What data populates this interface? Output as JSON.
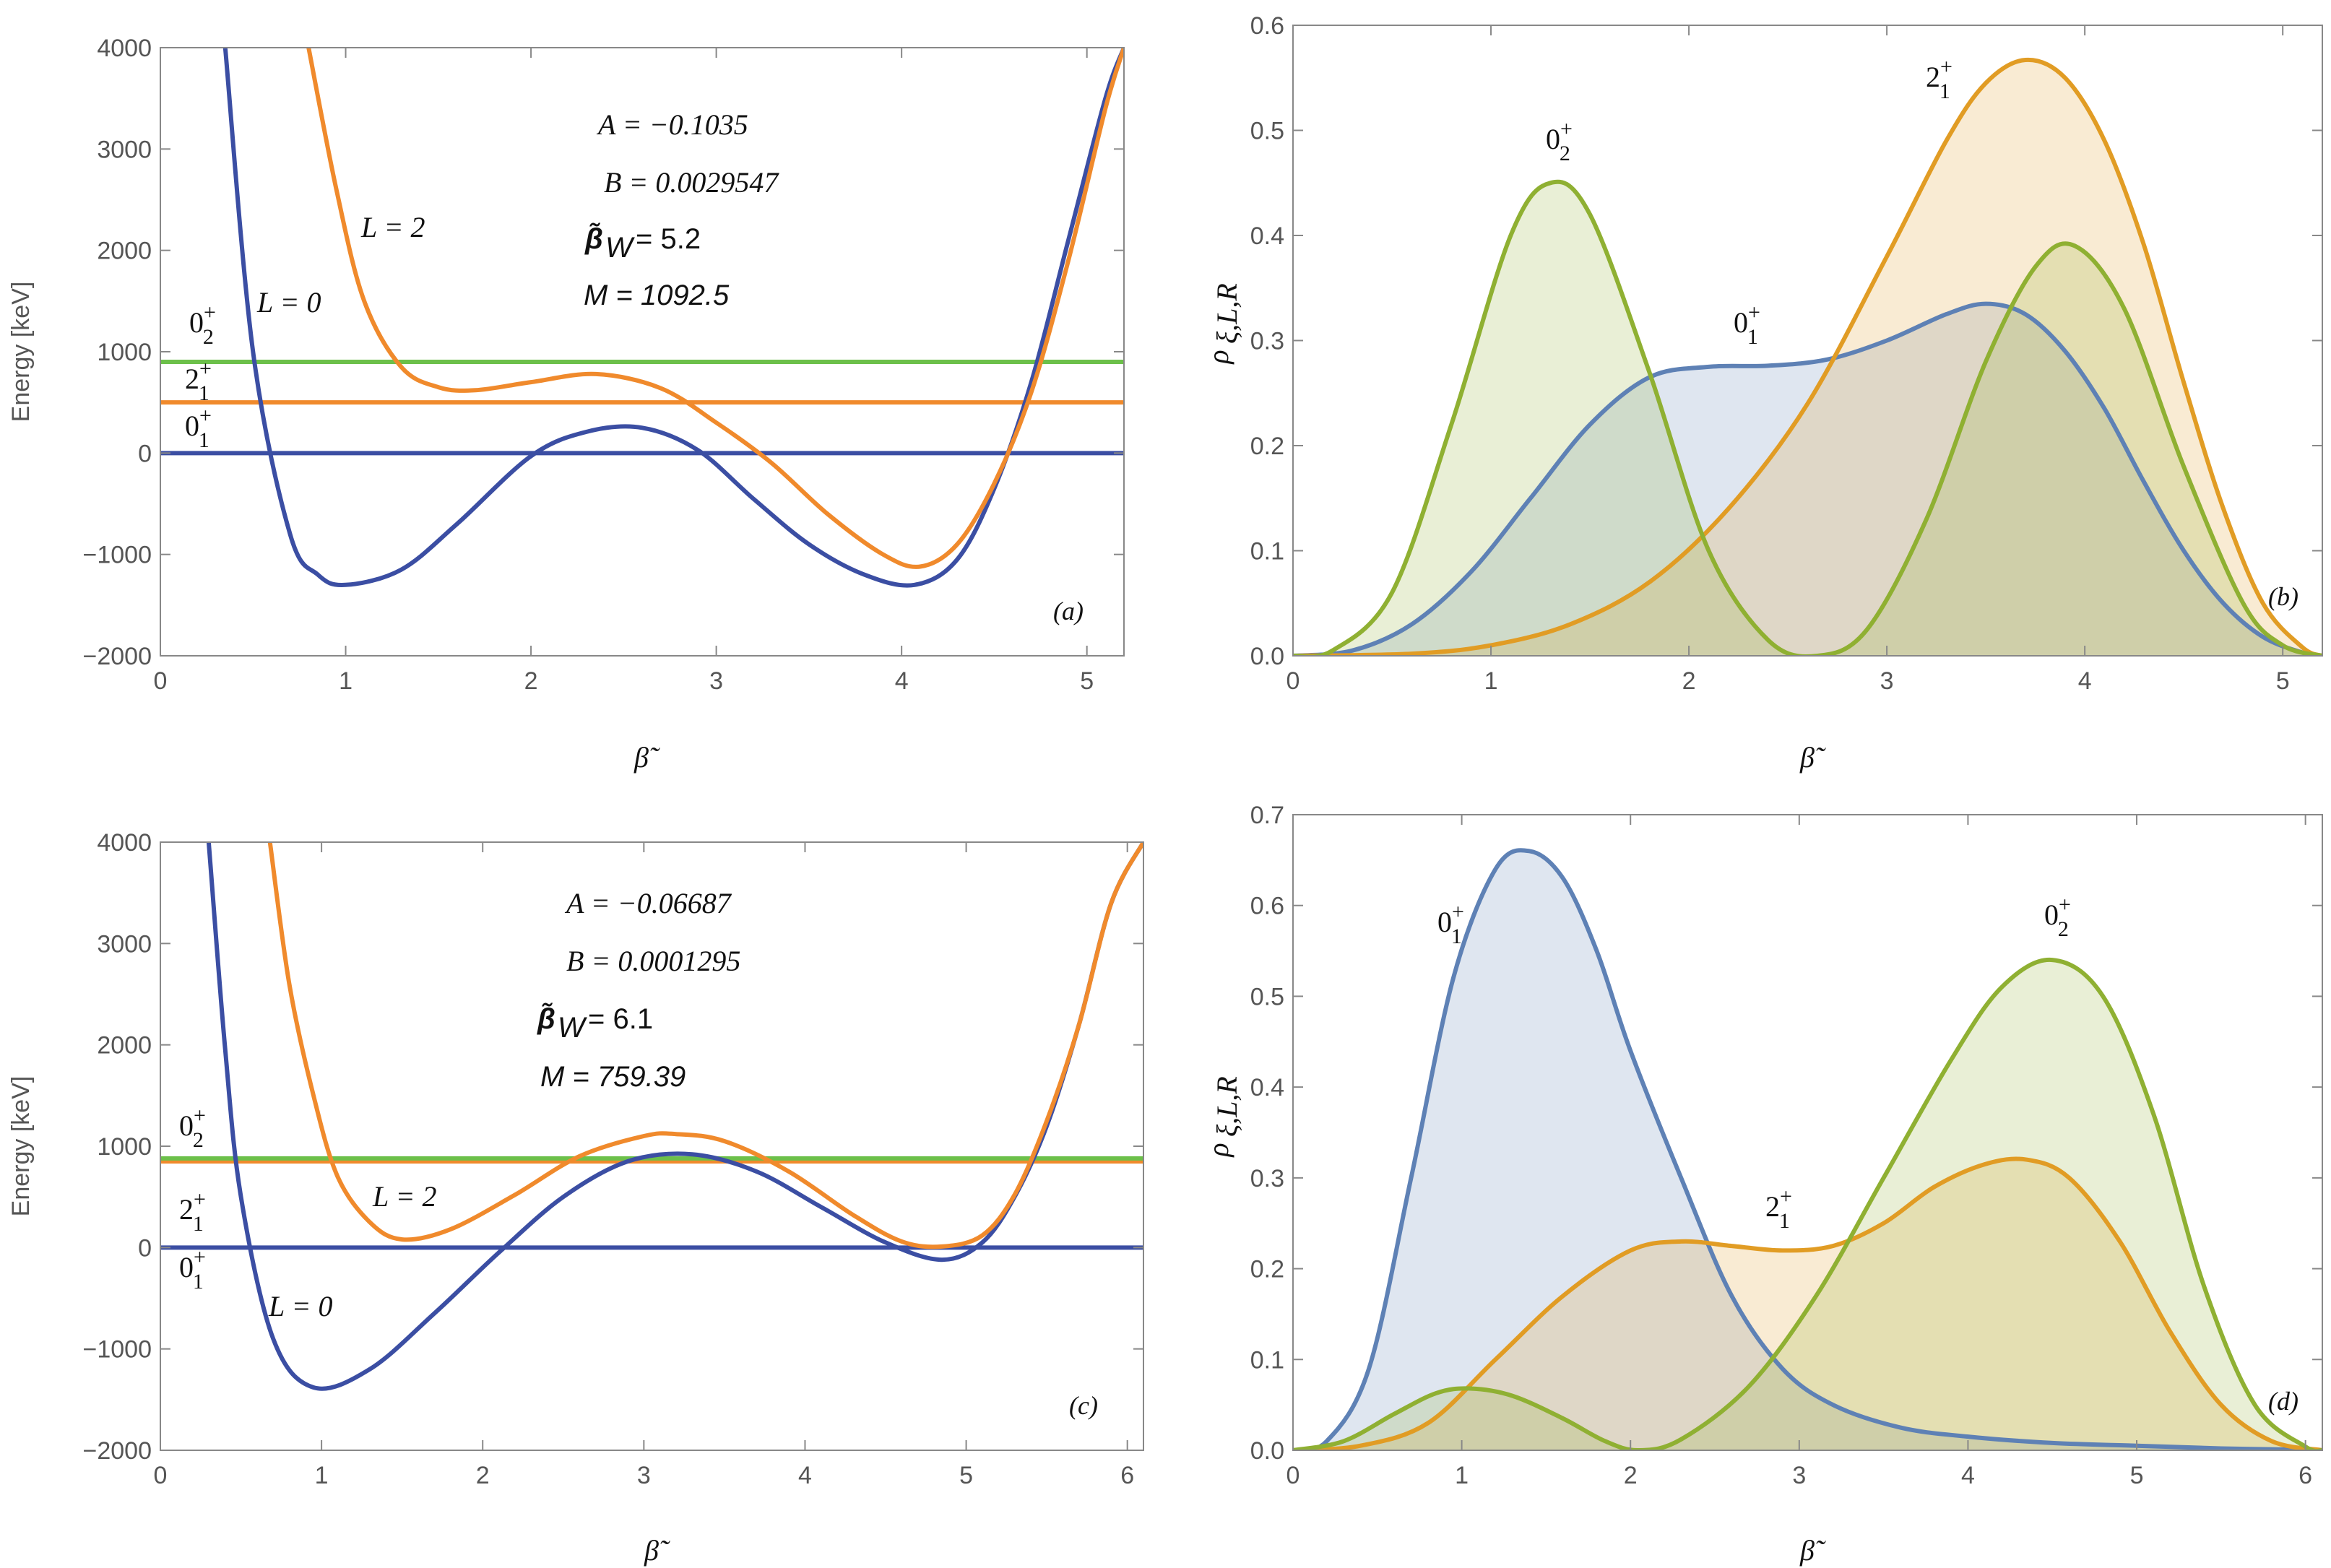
{
  "colors": {
    "blue": "#3b4ea3",
    "orange": "#f08a2c",
    "green": "#6cc04a",
    "dens_blue": "#5e81b5",
    "dens_orange": "#e19c24",
    "dens_green": "#8fb032",
    "frame": "#888888"
  },
  "chart_data": [
    {
      "panel": "(a)",
      "type": "line",
      "xlabel": "β̃",
      "ylabel": "Energy [keV]",
      "xlim": [
        0,
        5.2
      ],
      "ylim": [
        -2000,
        4000
      ],
      "xticks": [
        "0",
        "1",
        "2",
        "3",
        "4",
        "5"
      ],
      "yticks": [
        "−2000",
        "−1000",
        "0",
        "1000",
        "2000",
        "3000",
        "4000"
      ],
      "params": {
        "A": "A = −0.1035",
        "B": "B = 0.0029547",
        "beta_w_label": "β̃",
        "beta_w_sub": "W",
        "beta_w_value": "= 5.2",
        "M": "M = 1092.5"
      },
      "potentials": [
        {
          "name": "L = 0",
          "color": "blue",
          "x": [
            0.35,
            0.5,
            0.7,
            0.85,
            1.0,
            1.3,
            1.6,
            2.0,
            2.3,
            2.6,
            2.9,
            3.2,
            3.5,
            3.8,
            4.07,
            4.3,
            4.5,
            4.7,
            4.9,
            5.1,
            5.2
          ],
          "y": [
            4000,
            1000,
            -800,
            -1200,
            -1300,
            -1150,
            -700,
            -30,
            210,
            250,
            30,
            -450,
            -900,
            -1200,
            -1300,
            -1050,
            -350,
            700,
            2100,
            3500,
            4000
          ]
        },
        {
          "name": "L = 2",
          "color": "orange",
          "x": [
            0.8,
            0.95,
            1.1,
            1.3,
            1.5,
            1.7,
            2.0,
            2.35,
            2.7,
            3.0,
            3.3,
            3.6,
            3.9,
            4.1,
            4.3,
            4.5,
            4.7,
            4.9,
            5.1,
            5.2
          ],
          "y": [
            4000,
            2600,
            1500,
            850,
            650,
            620,
            700,
            780,
            640,
            300,
            -100,
            -600,
            -1000,
            -1120,
            -900,
            -300,
            600,
            1900,
            3400,
            4000
          ]
        }
      ],
      "levels": [
        {
          "label_main": "0",
          "label_sup": "+",
          "label_sub": "1",
          "energy": 0,
          "color": "blue"
        },
        {
          "label_main": "2",
          "label_sup": "+",
          "label_sub": "1",
          "energy": 500,
          "color": "orange"
        },
        {
          "label_main": "0",
          "label_sup": "+",
          "label_sub": "2",
          "energy": 900,
          "color": "green"
        }
      ]
    },
    {
      "panel": "(b)",
      "type": "area",
      "xlabel": "β̃",
      "ylabel": "ρ",
      "ylabel_sub": "ξ,L,R",
      "xlim": [
        0,
        5.2
      ],
      "ylim": [
        0,
        0.6
      ],
      "xticks": [
        "0",
        "1",
        "2",
        "3",
        "4",
        "5"
      ],
      "yticks": [
        "0.0",
        "0.1",
        "0.2",
        "0.3",
        "0.4",
        "0.5",
        "0.6"
      ],
      "series": [
        {
          "name": "0₁⁺",
          "label_main": "0",
          "label_sup": "+",
          "label_sub": "1",
          "color": "dens_blue",
          "x": [
            0,
            0.3,
            0.6,
            0.9,
            1.2,
            1.5,
            1.8,
            2.1,
            2.4,
            2.7,
            3.0,
            3.3,
            3.5,
            3.7,
            3.9,
            4.1,
            4.3,
            4.5,
            4.7,
            4.9,
            5.1,
            5.2
          ],
          "y": [
            0,
            0.005,
            0.03,
            0.08,
            0.15,
            0.22,
            0.265,
            0.275,
            0.276,
            0.282,
            0.3,
            0.325,
            0.335,
            0.325,
            0.29,
            0.235,
            0.165,
            0.1,
            0.05,
            0.018,
            0.003,
            0
          ]
        },
        {
          "name": "2₁⁺",
          "label_main": "2",
          "label_sup": "+",
          "label_sub": "1",
          "color": "dens_orange",
          "x": [
            0,
            0.6,
            1.0,
            1.4,
            1.8,
            2.2,
            2.6,
            3.0,
            3.3,
            3.5,
            3.7,
            3.9,
            4.1,
            4.3,
            4.5,
            4.7,
            4.9,
            5.1,
            5.2
          ],
          "y": [
            0,
            0.002,
            0.01,
            0.03,
            0.07,
            0.14,
            0.24,
            0.38,
            0.49,
            0.545,
            0.567,
            0.55,
            0.49,
            0.39,
            0.26,
            0.14,
            0.05,
            0.008,
            0
          ]
        },
        {
          "name": "0₂⁺",
          "label_main": "0",
          "label_sup": "+",
          "label_sub": "2",
          "color": "dens_green",
          "x": [
            0,
            0.2,
            0.5,
            0.8,
            1.1,
            1.3,
            1.5,
            1.8,
            2.1,
            2.4,
            2.65,
            2.9,
            3.2,
            3.5,
            3.75,
            3.95,
            4.2,
            4.5,
            4.8,
            5.0,
            5.2
          ],
          "y": [
            0,
            0.005,
            0.06,
            0.22,
            0.4,
            0.45,
            0.42,
            0.27,
            0.1,
            0.015,
            0,
            0.025,
            0.13,
            0.28,
            0.37,
            0.39,
            0.33,
            0.18,
            0.05,
            0.01,
            0
          ]
        }
      ]
    },
    {
      "panel": "(c)",
      "type": "line",
      "xlabel": "β̃",
      "ylabel": "Energy [keV]",
      "xlim": [
        0,
        6.1
      ],
      "ylim": [
        -2000,
        4000
      ],
      "xticks": [
        "0",
        "1",
        "2",
        "3",
        "4",
        "5",
        "6"
      ],
      "yticks": [
        "−2000",
        "−1000",
        "0",
        "1000",
        "2000",
        "3000",
        "4000"
      ],
      "params": {
        "A": "A = −0.06687",
        "B": "B = 0.0001295",
        "beta_w_label": "β̃",
        "beta_w_sub": "W",
        "beta_w_value": "= 6.1",
        "M": "M = 759.39"
      },
      "potentials": [
        {
          "name": "L = 0",
          "color": "blue",
          "x": [
            0.3,
            0.4,
            0.5,
            0.7,
            0.95,
            1.3,
            1.7,
            2.1,
            2.5,
            2.9,
            3.3,
            3.7,
            4.1,
            4.5,
            4.85,
            5.1,
            5.3,
            5.5,
            5.7,
            5.9,
            6.1
          ],
          "y": [
            4000,
            2000,
            500,
            -900,
            -1380,
            -1200,
            -650,
            -50,
            500,
            850,
            920,
            750,
            400,
            50,
            -120,
            50,
            500,
            1200,
            2200,
            3400,
            4000
          ]
        },
        {
          "name": "L = 2",
          "color": "orange",
          "x": [
            0.68,
            0.8,
            0.95,
            1.1,
            1.3,
            1.5,
            1.8,
            2.2,
            2.6,
            3.0,
            3.2,
            3.5,
            3.9,
            4.3,
            4.6,
            4.85,
            5.1,
            5.3,
            5.5,
            5.7,
            5.9,
            6.1
          ],
          "y": [
            4000,
            2600,
            1500,
            700,
            250,
            80,
            180,
            520,
            900,
            1100,
            1120,
            1050,
            750,
            320,
            60,
            10,
            120,
            520,
            1250,
            2200,
            3400,
            4000
          ]
        }
      ],
      "levels": [
        {
          "label_main": "0",
          "label_sup": "+",
          "label_sub": "1",
          "energy": 0,
          "color": "blue"
        },
        {
          "label_main": "2",
          "label_sup": "+",
          "label_sub": "1",
          "energy": 850,
          "color": "orange"
        },
        {
          "label_main": "0",
          "label_sup": "+",
          "label_sub": "2",
          "energy": 880,
          "color": "green"
        }
      ]
    },
    {
      "panel": "(d)",
      "type": "area",
      "xlabel": "β̃",
      "ylabel": "ρ",
      "ylabel_sub": "ξ,L,R",
      "xlim": [
        0,
        6.1
      ],
      "ylim": [
        0,
        0.7
      ],
      "xticks": [
        "0",
        "1",
        "2",
        "3",
        "4",
        "5",
        "6"
      ],
      "yticks": [
        "0.0",
        "0.1",
        "0.2",
        "0.3",
        "0.4",
        "0.5",
        "0.6",
        "0.7"
      ],
      "series": [
        {
          "name": "0₁⁺",
          "label_main": "0",
          "label_sup": "+",
          "label_sub": "1",
          "color": "dens_blue",
          "x": [
            0,
            0.2,
            0.45,
            0.7,
            0.95,
            1.2,
            1.4,
            1.6,
            1.8,
            2.0,
            2.3,
            2.6,
            2.9,
            3.2,
            3.6,
            4.0,
            4.5,
            5.0,
            5.5,
            6.0,
            6.1
          ],
          "y": [
            0,
            0.01,
            0.09,
            0.3,
            0.52,
            0.64,
            0.66,
            0.63,
            0.55,
            0.44,
            0.3,
            0.17,
            0.09,
            0.05,
            0.025,
            0.015,
            0.008,
            0.005,
            0.002,
            0.0005,
            0
          ]
        },
        {
          "name": "2₁⁺",
          "label_main": "2",
          "label_sup": "+",
          "label_sub": "1",
          "color": "dens_orange",
          "x": [
            0,
            0.4,
            0.8,
            1.2,
            1.6,
            2.0,
            2.3,
            2.6,
            2.9,
            3.2,
            3.5,
            3.8,
            4.1,
            4.35,
            4.6,
            4.9,
            5.2,
            5.5,
            5.8,
            6.1
          ],
          "y": [
            0,
            0.005,
            0.03,
            0.1,
            0.17,
            0.22,
            0.23,
            0.225,
            0.22,
            0.225,
            0.25,
            0.29,
            0.315,
            0.32,
            0.3,
            0.23,
            0.13,
            0.05,
            0.01,
            0
          ]
        },
        {
          "name": "0₂⁺",
          "label_main": "0",
          "label_sup": "+",
          "label_sub": "2",
          "color": "dens_green",
          "x": [
            0,
            0.3,
            0.6,
            0.85,
            1.05,
            1.3,
            1.6,
            1.85,
            2.05,
            2.3,
            2.7,
            3.1,
            3.5,
            3.9,
            4.2,
            4.5,
            4.8,
            5.1,
            5.4,
            5.7,
            6.0,
            6.1
          ],
          "y": [
            0,
            0.01,
            0.04,
            0.063,
            0.068,
            0.06,
            0.035,
            0.01,
            0,
            0.012,
            0.07,
            0.17,
            0.3,
            0.43,
            0.51,
            0.54,
            0.5,
            0.37,
            0.18,
            0.05,
            0.004,
            0
          ]
        }
      ]
    }
  ],
  "annotations": {
    "a": {
      "l0": "L = 0",
      "l2": "L = 2"
    },
    "c": {
      "l0": "L = 0",
      "l2": "L = 2"
    }
  }
}
